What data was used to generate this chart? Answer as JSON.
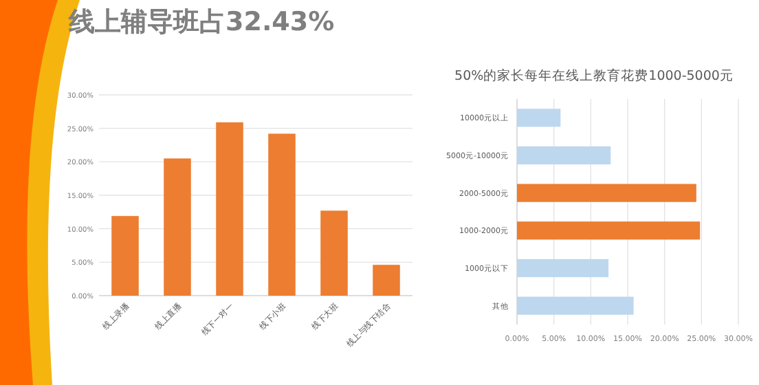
{
  "chart_data": [
    {
      "type": "bar",
      "title": "线上辅导班占32.43%",
      "categories": [
        "线上录播",
        "线上直播",
        "线下一对一",
        "线下小班",
        "线下大班",
        "线上与线下结合"
      ],
      "values": [
        11.9,
        20.5,
        25.9,
        24.2,
        12.7,
        4.6
      ],
      "color": "#ed7d31",
      "ylim": [
        0,
        30
      ],
      "yticks": [
        {
          "value": 0,
          "label": "0.00%"
        },
        {
          "value": 5,
          "label": "5.00%"
        },
        {
          "value": 10,
          "label": "10.00%"
        },
        {
          "value": 15,
          "label": "15.00%"
        },
        {
          "value": 20,
          "label": "20.00%"
        },
        {
          "value": 25,
          "label": "25.00%"
        },
        {
          "value": 30,
          "label": "30.00%"
        }
      ],
      "grid": "y"
    },
    {
      "type": "bar",
      "orientation": "horizontal",
      "title": "50%的家长每年在线上教育花费1000-5000元",
      "categories": [
        "10000元以上",
        "5000元-10000元",
        "2000-5000元",
        "1000-2000元",
        "1000元以下",
        "其他"
      ],
      "values": [
        5.9,
        12.7,
        24.3,
        24.8,
        12.4,
        15.8
      ],
      "colors": [
        "#bdd7ee",
        "#bdd7ee",
        "#ed7d31",
        "#ed7d31",
        "#bdd7ee",
        "#bdd7ee"
      ],
      "xlim": [
        0,
        30
      ],
      "xticks": [
        {
          "value": 0,
          "label": "0.00%"
        },
        {
          "value": 5,
          "label": "5.00%"
        },
        {
          "value": 10,
          "label": "10.00%"
        },
        {
          "value": 15,
          "label": "15.00%"
        },
        {
          "value": 20,
          "label": "20.00%"
        },
        {
          "value": 25,
          "label": "25.00%"
        },
        {
          "value": 30,
          "label": "30.00%"
        }
      ],
      "grid": "x"
    }
  ]
}
